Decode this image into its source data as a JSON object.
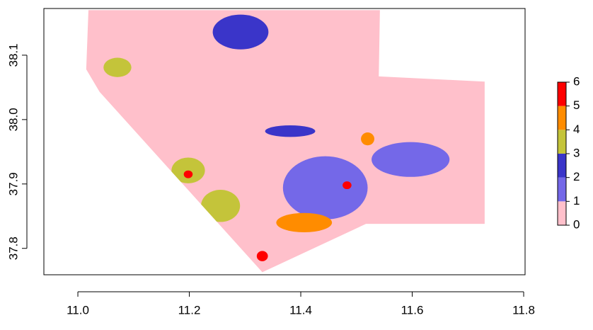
{
  "chart_data": {
    "type": "raster",
    "xlim": [
      10.939,
      11.8025
    ],
    "ylim": [
      37.759,
      38.1725
    ],
    "xticks": [
      {
        "value": 11.0,
        "label": "11.0"
      },
      {
        "value": 11.2,
        "label": "11.2"
      },
      {
        "value": 11.4,
        "label": "11.4"
      },
      {
        "value": 11.6,
        "label": "11.6"
      },
      {
        "value": 11.8,
        "label": "11.8"
      }
    ],
    "yticks": [
      {
        "value": 37.8,
        "label": "37.8"
      },
      {
        "value": 37.9,
        "label": "37.9"
      },
      {
        "value": 38.0,
        "label": "38.0"
      },
      {
        "value": 38.1,
        "label": "38.1"
      }
    ],
    "outline": {
      "x": [
        11.019,
        11.542,
        11.54,
        11.73,
        11.73,
        11.517,
        11.331,
        11.039,
        11.015
      ],
      "y": [
        38.17,
        38.17,
        38.067,
        38.059,
        37.838,
        37.838,
        37.763,
        38.043,
        38.078
      ]
    },
    "patches": {
      "x": [
        11.444,
        11.597,
        11.292,
        11.381,
        11.198,
        11.256,
        11.406,
        11.071,
        11.52,
        11.331,
        11.198,
        11.483
      ],
      "y": [
        37.894,
        37.938,
        38.136,
        37.982,
        37.921,
        37.866,
        37.84,
        38.081,
        37.97,
        37.788,
        37.915,
        37.898
      ],
      "rx": [
        0.076,
        0.07,
        0.05,
        0.045,
        0.03,
        0.035,
        0.05,
        0.025,
        0.012,
        0.01,
        0.008,
        0.008
      ],
      "ry": [
        0.049,
        0.027,
        0.027,
        0.009,
        0.02,
        0.025,
        0.015,
        0.015,
        0.01,
        0.008,
        0.006,
        0.006
      ],
      "values": [
        1.5,
        1.5,
        2.5,
        2.5,
        3.5,
        3.5,
        4.5,
        3.5,
        4.5,
        5.5,
        5.5,
        5.5
      ]
    },
    "legend": {
      "breaks": [
        0,
        1,
        2,
        3,
        4,
        5,
        6
      ],
      "colors": [
        "#ffc0cb",
        "#7468e8",
        "#3a35c9",
        "#c4c43a",
        "#ff8c00",
        "#ff0000"
      ]
    }
  }
}
